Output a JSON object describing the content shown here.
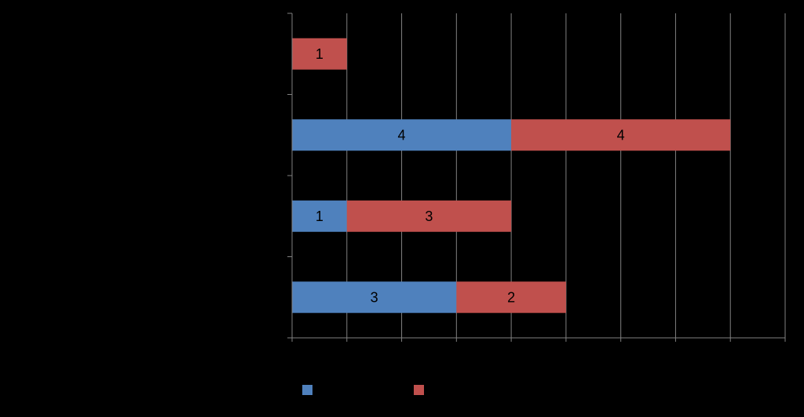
{
  "chart_data": {
    "type": "bar",
    "orientation": "horizontal",
    "stacked": true,
    "categories": [
      "",
      "",
      "",
      ""
    ],
    "series": [
      {
        "name": "",
        "color": "#4F81BD",
        "values": [
          3,
          1,
          4,
          0
        ]
      },
      {
        "name": "",
        "color": "#C0504D",
        "values": [
          2,
          3,
          4,
          1
        ]
      }
    ],
    "data_labels": {
      "series_0": [
        "3",
        "1",
        "4",
        ""
      ],
      "series_1": [
        "2",
        "3",
        "4",
        "1"
      ]
    },
    "title": "",
    "xlabel": "",
    "ylabel": "",
    "xlim": [
      0,
      9
    ],
    "x_major_unit": 1,
    "grid": "vertical",
    "legend_position": "bottom",
    "background": "#000000",
    "gridline_color": "#808080",
    "label_color": "#000000"
  }
}
